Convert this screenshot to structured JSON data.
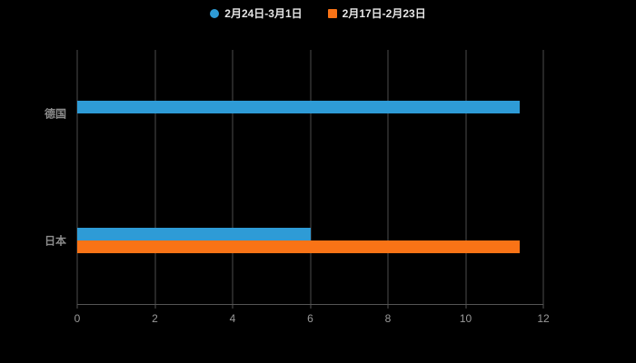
{
  "chart_data": {
    "type": "bar",
    "orientation": "horizontal",
    "title": "",
    "categories": [
      "德国",
      "日本"
    ],
    "series": [
      {
        "name": "2月24日-3月1日",
        "color": "#2E9BD6",
        "marker": "circle",
        "values": [
          11.4,
          6
        ]
      },
      {
        "name": "2月17日-2月23日",
        "color": "#F97316",
        "marker": "square",
        "values": [
          0,
          11.4
        ]
      }
    ],
    "xlim": [
      0,
      12
    ],
    "xticks": [
      0,
      2,
      4,
      6,
      8,
      10,
      12
    ],
    "grid": true,
    "legend_position": "top-center",
    "background": "#000000",
    "gridline_color": "#4d4d4d",
    "axis_label_color": "#999999",
    "legend_text_color": "#e6e6e6"
  }
}
